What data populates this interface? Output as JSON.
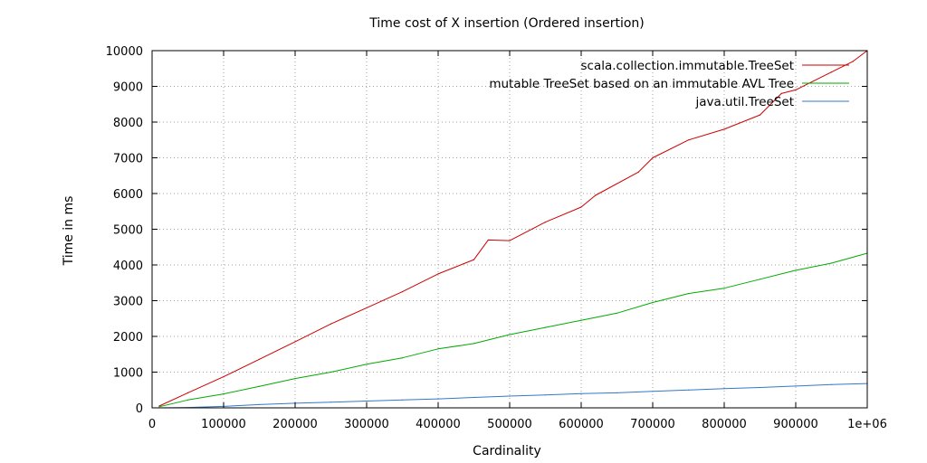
{
  "chart_data": {
    "type": "line",
    "title": "Time cost of X insertion (Ordered insertion)",
    "xlabel": "Cardinality",
    "ylabel": "Time in ms",
    "xlim": [
      0,
      1000000
    ],
    "ylim": [
      0,
      10000
    ],
    "x_ticks": [
      0,
      100000,
      200000,
      300000,
      400000,
      500000,
      600000,
      700000,
      800000,
      900000,
      1000000
    ],
    "x_tick_labels": [
      "0",
      "100000",
      "200000",
      "300000",
      "400000",
      "500000",
      "600000",
      "700000",
      "800000",
      "900000",
      "1e+06"
    ],
    "y_ticks": [
      0,
      1000,
      2000,
      3000,
      4000,
      5000,
      6000,
      7000,
      8000,
      9000,
      10000
    ],
    "y_tick_labels": [
      "0",
      "1000",
      "2000",
      "3000",
      "4000",
      "5000",
      "6000",
      "7000",
      "8000",
      "9000",
      "10000"
    ],
    "grid": true,
    "legend_position": "top-right",
    "series": [
      {
        "name": "scala.collection.immutable.TreeSet",
        "color": "#cc0000",
        "x": [
          10000,
          50000,
          100000,
          150000,
          200000,
          250000,
          300000,
          350000,
          400000,
          450000,
          470000,
          500000,
          550000,
          600000,
          620000,
          680000,
          700000,
          750000,
          800000,
          850000,
          880000,
          900000,
          950000,
          980000,
          1000000
        ],
        "values": [
          50,
          420,
          870,
          1360,
          1850,
          2350,
          2800,
          3250,
          3750,
          4150,
          4700,
          4680,
          5200,
          5620,
          5950,
          6600,
          7000,
          7500,
          7800,
          8200,
          8800,
          8900,
          9400,
          9700,
          10000
        ]
      },
      {
        "name": "mutable TreeSet based on an immutable AVL Tree",
        "color": "#00aa00",
        "x": [
          10000,
          50000,
          100000,
          150000,
          200000,
          250000,
          300000,
          350000,
          400000,
          450000,
          500000,
          550000,
          600000,
          650000,
          700000,
          750000,
          800000,
          850000,
          900000,
          950000,
          1000000
        ],
        "values": [
          30,
          220,
          390,
          600,
          820,
          1000,
          1220,
          1400,
          1650,
          1800,
          2050,
          2250,
          2450,
          2650,
          2950,
          3200,
          3350,
          3600,
          3850,
          4050,
          4330
        ]
      },
      {
        "name": "java.util.TreeSet",
        "color": "#3377cc",
        "x": [
          10000,
          50000,
          100000,
          150000,
          200000,
          250000,
          300000,
          350000,
          400000,
          450000,
          500000,
          550000,
          600000,
          650000,
          700000,
          750000,
          800000,
          850000,
          900000,
          950000,
          1000000
        ],
        "values": [
          0,
          10,
          40,
          90,
          130,
          160,
          190,
          220,
          250,
          290,
          330,
          360,
          400,
          420,
          460,
          500,
          540,
          570,
          610,
          650,
          680
        ]
      }
    ]
  }
}
